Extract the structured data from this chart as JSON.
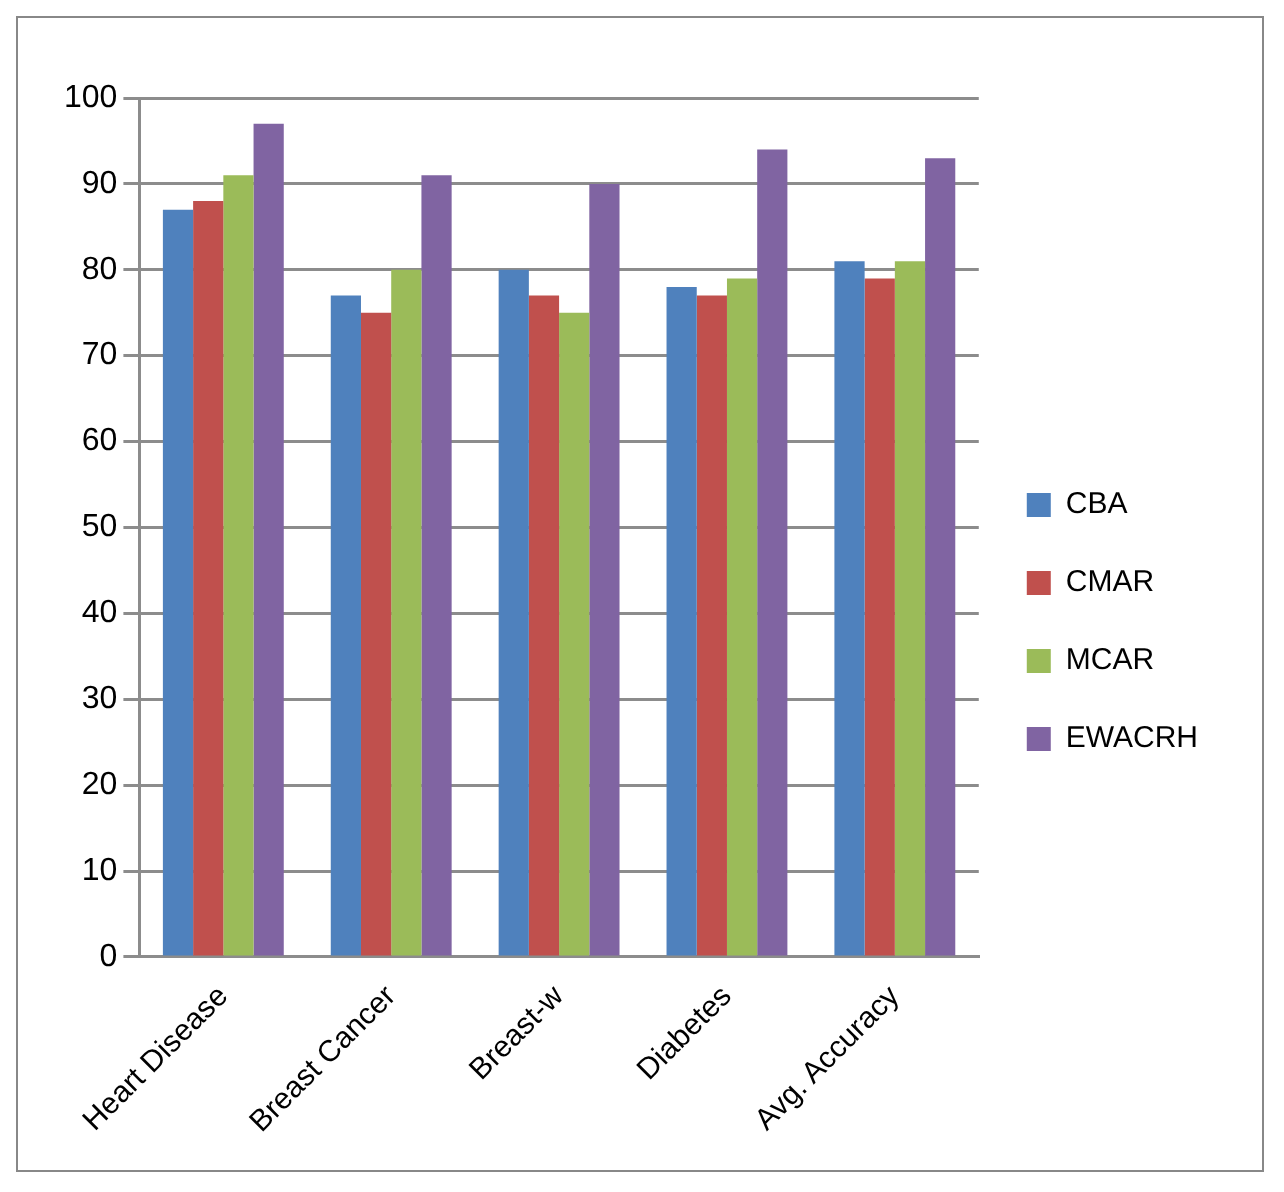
{
  "chart_data": {
    "type": "bar",
    "categories": [
      "Heart Disease",
      "Breast Cancer",
      "Breast-w",
      "Diabetes",
      "Avg. Accuracy"
    ],
    "series": [
      {
        "name": "CBA",
        "color": "#4f81bd",
        "values": [
          87,
          77,
          80,
          78,
          81
        ]
      },
      {
        "name": "CMAR",
        "color": "#c0504d",
        "values": [
          88,
          75,
          77,
          77,
          79
        ]
      },
      {
        "name": "MCAR",
        "color": "#9bbb59",
        "values": [
          91,
          80,
          75,
          79,
          81
        ]
      },
      {
        "name": "EWACRH",
        "color": "#8064a2",
        "values": [
          97,
          91,
          90,
          94,
          93
        ]
      }
    ],
    "ylim": [
      0,
      100
    ],
    "yticks": [
      0,
      10,
      20,
      30,
      40,
      50,
      60,
      70,
      80,
      90,
      100
    ],
    "grid": "y",
    "legend": "right"
  }
}
